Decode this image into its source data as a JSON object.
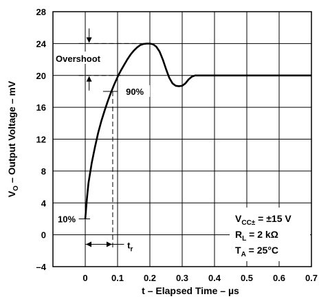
{
  "chart_data": {
    "type": "line",
    "xlabel": "t – Elapsed Time – µs",
    "ylabel": {
      "base": "V",
      "sub": "O",
      "rest": " – Output Voltage – mV"
    },
    "xlim": [
      -0.1,
      0.7
    ],
    "ylim": [
      -4,
      28
    ],
    "x_ticks": [
      "0",
      "0.1",
      "0.2",
      "0.3",
      "0.4",
      "0.5",
      "0.6",
      "0.7"
    ],
    "x_tick_values": [
      0,
      0.1,
      0.2,
      0.3,
      0.4,
      0.5,
      0.6,
      0.7
    ],
    "y_ticks": [
      "–4",
      "0",
      "4",
      "8",
      "12",
      "16",
      "20",
      "24",
      "28"
    ],
    "y_tick_values": [
      -4,
      0,
      4,
      8,
      12,
      16,
      20,
      24,
      28
    ],
    "grid": true,
    "series": [
      {
        "x": [
          0.0,
          0.005,
          0.01,
          0.02,
          0.03,
          0.04,
          0.05,
          0.06,
          0.07,
          0.08,
          0.09,
          0.1,
          0.11,
          0.12,
          0.13,
          0.14,
          0.15,
          0.16,
          0.17,
          0.18,
          0.19,
          0.2,
          0.21,
          0.22,
          0.23,
          0.24,
          0.25,
          0.26,
          0.27,
          0.28,
          0.29,
          0.3,
          0.31,
          0.32,
          0.33,
          0.34,
          0.35,
          0.36,
          0.4,
          0.5,
          0.6,
          0.7
        ],
        "y": [
          2.0,
          4.5,
          6.5,
          9.0,
          11.0,
          12.8,
          14.3,
          15.6,
          16.8,
          17.9,
          18.9,
          19.8,
          20.6,
          21.3,
          22.0,
          22.6,
          23.1,
          23.5,
          23.8,
          23.95,
          24.0,
          24.0,
          23.9,
          23.6,
          23.0,
          22.0,
          20.8,
          19.7,
          19.0,
          18.7,
          18.65,
          18.7,
          19.0,
          19.5,
          19.85,
          20.0,
          20.0,
          20.0,
          20.0,
          20.0,
          20.0,
          20.0
        ]
      }
    ],
    "annotations": {
      "overshoot": "Overshoot",
      "ninety": "90%",
      "ten": "10%",
      "tr_base": "t",
      "tr_sub": "r"
    },
    "conditions": {
      "vcc_base": "V",
      "vcc_sub": "CC±",
      "vcc_rest": " = ±15 V",
      "rl_base": "R",
      "rl_sub": "L",
      "rl_rest": " =  2 kΩ",
      "ta_base": "T",
      "ta_sub": "A",
      "ta_rest": " = 25°C"
    },
    "levels": {
      "overshoot_top": 24,
      "overshoot_bottom": 20,
      "ninety_pct_y": 18,
      "ninety_pct_x": 0.085,
      "ten_pct_y": 2,
      "tr_start": 0,
      "tr_end": 0.085
    }
  }
}
